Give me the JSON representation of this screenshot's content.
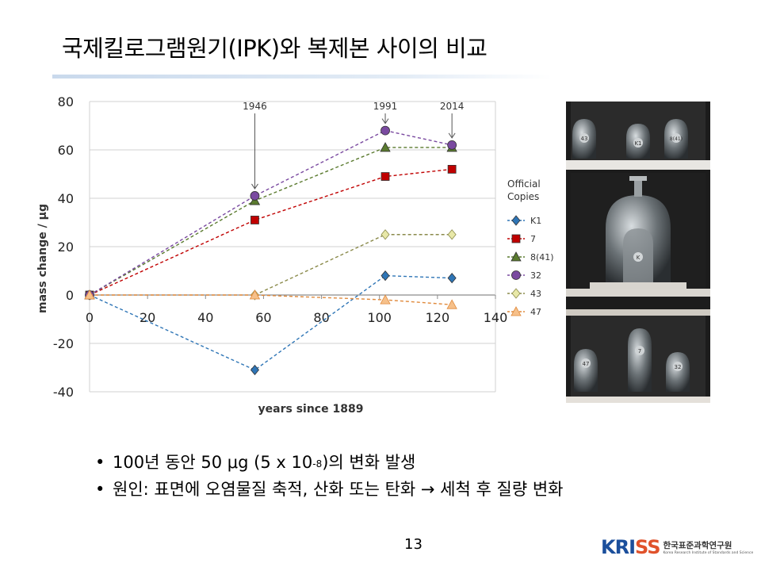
{
  "slide": {
    "title": "국제킬로그램원기(IPK)와 복제본 사이의 비교",
    "page_number": "13",
    "bullets": [
      {
        "pre": "100년 동안 50 ",
        "mu": "μ",
        "mid": "g (5 x 10",
        "sup": "-8",
        "post": ")의 변화 발생"
      },
      {
        "text": "원인: 표면에 오염물질 축적, 산화 또는 탄화 → 세척 후 질량 변화"
      }
    ],
    "logo": {
      "text_kri": "KRI",
      "text_ss": "SS",
      "korean_name": "한국표준과학연구원",
      "english_name": "Korea Research Institute of Standards and Science"
    },
    "photo": {
      "top_shelf_labels": [
        "43",
        "K1",
        "8(41)"
      ],
      "center_label": "K",
      "bottom_shelf_labels": [
        "47",
        "7",
        "32"
      ]
    }
  },
  "chart_data": {
    "type": "line",
    "xlabel": "years since 1889",
    "ylabel": "mass change / µg",
    "xlim": [
      0,
      140
    ],
    "ylim": [
      -40,
      80
    ],
    "xticks": [
      0,
      20,
      40,
      60,
      80,
      100,
      120,
      140
    ],
    "yticks": [
      -40,
      -20,
      0,
      20,
      40,
      60,
      80
    ],
    "grid": "horizontal",
    "legend": {
      "title_line1": "Official",
      "title_line2": "Copies",
      "position": "right"
    },
    "annotations": [
      {
        "label": "1946",
        "x": 57,
        "y": 41
      },
      {
        "label": "1991",
        "x": 102,
        "y": 68
      },
      {
        "label": "2014",
        "x": 125,
        "y": 62
      }
    ],
    "series": [
      {
        "name": "K1",
        "color": "#2e75b6",
        "marker": "diamond",
        "points": [
          [
            0,
            0
          ],
          [
            57,
            -31
          ],
          [
            102,
            8
          ],
          [
            125,
            7
          ]
        ]
      },
      {
        "name": "7",
        "color": "#c00000",
        "marker": "square",
        "points": [
          [
            0,
            0
          ],
          [
            57,
            31
          ],
          [
            102,
            49
          ],
          [
            125,
            52
          ]
        ]
      },
      {
        "name": "8(41)",
        "color": "#5a7a2e",
        "marker": "triangle",
        "points": [
          [
            0,
            0
          ],
          [
            57,
            39
          ],
          [
            102,
            61
          ],
          [
            125,
            61
          ]
        ]
      },
      {
        "name": "32",
        "color": "#7a4aa0",
        "marker": "circle",
        "points": [
          [
            0,
            0
          ],
          [
            57,
            41
          ],
          [
            102,
            68
          ],
          [
            125,
            62
          ]
        ]
      },
      {
        "name": "43",
        "color": "#8a8a4a",
        "marker": "diamond-light",
        "points": [
          [
            57,
            0
          ],
          [
            102,
            25
          ],
          [
            125,
            25
          ]
        ]
      },
      {
        "name": "47",
        "color": "#e08a3c",
        "marker": "triangle-light",
        "points": [
          [
            0,
            0
          ],
          [
            57,
            0
          ],
          [
            102,
            -2
          ],
          [
            125,
            -4
          ]
        ]
      }
    ]
  }
}
